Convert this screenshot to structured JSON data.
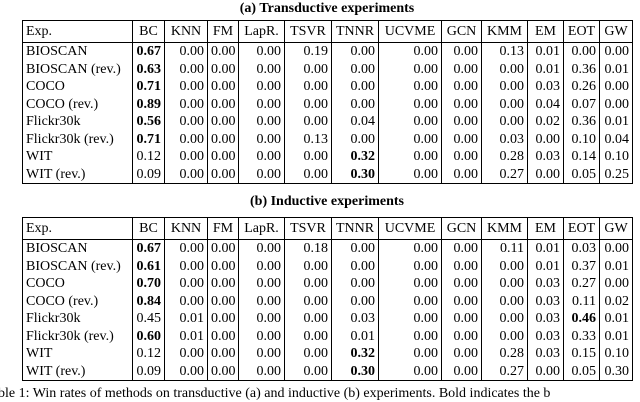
{
  "tables": [
    {
      "title": "(a) Transductive experiments",
      "header": [
        "Exp.",
        "BC",
        "KNN",
        "FM",
        "LapR.",
        "TSVR",
        "TNNR",
        "UCVME",
        "GCN",
        "KMM",
        "EM",
        "EOT",
        "GW"
      ],
      "rows": [
        [
          "BIOSCAN",
          "0.67",
          "0.00",
          "0.00",
          "0.00",
          "0.19",
          "0.00",
          "0.00",
          "0.00",
          "0.13",
          "0.01",
          "0.00",
          "0.00"
        ],
        [
          "BIOSCAN (rev.)",
          "0.63",
          "0.00",
          "0.00",
          "0.00",
          "0.00",
          "0.00",
          "0.00",
          "0.00",
          "0.00",
          "0.01",
          "0.36",
          "0.01"
        ],
        [
          "COCO",
          "0.71",
          "0.00",
          "0.00",
          "0.00",
          "0.00",
          "0.00",
          "0.00",
          "0.00",
          "0.00",
          "0.03",
          "0.26",
          "0.00"
        ],
        [
          "COCO (rev.)",
          "0.89",
          "0.00",
          "0.00",
          "0.00",
          "0.00",
          "0.00",
          "0.00",
          "0.00",
          "0.00",
          "0.04",
          "0.07",
          "0.00"
        ],
        [
          "Flickr30k",
          "0.56",
          "0.00",
          "0.00",
          "0.00",
          "0.00",
          "0.04",
          "0.00",
          "0.00",
          "0.00",
          "0.02",
          "0.36",
          "0.01"
        ],
        [
          "Flickr30k (rev.)",
          "0.71",
          "0.00",
          "0.00",
          "0.00",
          "0.13",
          "0.00",
          "0.00",
          "0.00",
          "0.03",
          "0.00",
          "0.10",
          "0.04"
        ],
        [
          "WIT",
          "0.12",
          "0.00",
          "0.00",
          "0.00",
          "0.00",
          "0.32",
          "0.00",
          "0.00",
          "0.28",
          "0.03",
          "0.14",
          "0.10"
        ],
        [
          "WIT (rev.)",
          "0.09",
          "0.00",
          "0.00",
          "0.00",
          "0.00",
          "0.30",
          "0.00",
          "0.00",
          "0.27",
          "0.00",
          "0.05",
          "0.25"
        ]
      ],
      "bold": [
        [
          0,
          1
        ],
        [
          1,
          1
        ],
        [
          2,
          1
        ],
        [
          3,
          1
        ],
        [
          4,
          1
        ],
        [
          5,
          1
        ],
        [
          6,
          6
        ],
        [
          7,
          6
        ]
      ]
    },
    {
      "title": "(b) Inductive experiments",
      "header": [
        "Exp.",
        "BC",
        "KNN",
        "FM",
        "LapR.",
        "TSVR",
        "TNNR",
        "UCVME",
        "GCN",
        "KMM",
        "EM",
        "EOT",
        "GW"
      ],
      "rows": [
        [
          "BIOSCAN",
          "0.67",
          "0.00",
          "0.00",
          "0.00",
          "0.18",
          "0.00",
          "0.00",
          "0.00",
          "0.11",
          "0.01",
          "0.03",
          "0.00"
        ],
        [
          "BIOSCAN (rev.)",
          "0.61",
          "0.00",
          "0.00",
          "0.00",
          "0.00",
          "0.00",
          "0.00",
          "0.00",
          "0.00",
          "0.01",
          "0.37",
          "0.01"
        ],
        [
          "COCO",
          "0.70",
          "0.00",
          "0.00",
          "0.00",
          "0.00",
          "0.00",
          "0.00",
          "0.00",
          "0.00",
          "0.03",
          "0.27",
          "0.00"
        ],
        [
          "COCO (rev.)",
          "0.84",
          "0.00",
          "0.00",
          "0.00",
          "0.00",
          "0.00",
          "0.00",
          "0.00",
          "0.00",
          "0.03",
          "0.11",
          "0.02"
        ],
        [
          "Flickr30k",
          "0.45",
          "0.01",
          "0.00",
          "0.00",
          "0.00",
          "0.03",
          "0.00",
          "0.00",
          "0.00",
          "0.03",
          "0.46",
          "0.01"
        ],
        [
          "Flickr30k (rev.)",
          "0.60",
          "0.01",
          "0.00",
          "0.00",
          "0.00",
          "0.01",
          "0.00",
          "0.00",
          "0.00",
          "0.03",
          "0.33",
          "0.01"
        ],
        [
          "WIT",
          "0.12",
          "0.00",
          "0.00",
          "0.00",
          "0.00",
          "0.32",
          "0.00",
          "0.00",
          "0.28",
          "0.03",
          "0.15",
          "0.10"
        ],
        [
          "WIT (rev.)",
          "0.09",
          "0.00",
          "0.00",
          "0.00",
          "0.00",
          "0.30",
          "0.00",
          "0.00",
          "0.27",
          "0.00",
          "0.05",
          "0.30"
        ]
      ],
      "bold": [
        [
          0,
          1
        ],
        [
          1,
          1
        ],
        [
          2,
          1
        ],
        [
          3,
          1
        ],
        [
          4,
          11
        ],
        [
          5,
          1
        ],
        [
          6,
          6
        ],
        [
          7,
          6
        ]
      ]
    }
  ],
  "caption": "ble 1: Win rates of methods on transductive (a) and inductive (b) experiments. Bold indicates the b"
}
